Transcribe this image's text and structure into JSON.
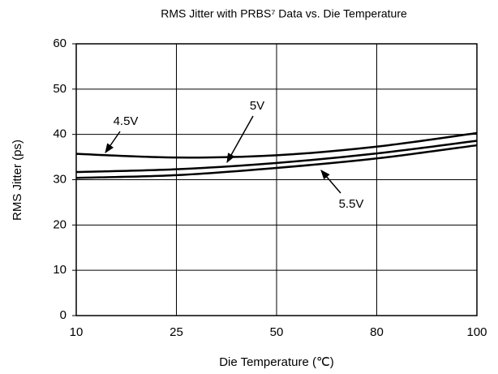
{
  "chart_data": {
    "type": "line",
    "title": "RMS Jitter with PRBS⁷ Data vs. Die Temperature",
    "x_label": "Die Temperature (℃)",
    "y_label": "RMS Jitter (ps)",
    "categories": [
      "10",
      "25",
      "50",
      "80",
      "100"
    ],
    "series": [
      {
        "name": "4.5V",
        "color": "#000000",
        "values": [
          35.7,
          34.9,
          35.4,
          37.3,
          40.3
        ]
      },
      {
        "name": "5V",
        "color": "#000000",
        "values": [
          31.7,
          32.3,
          33.7,
          35.8,
          38.6
        ]
      },
      {
        "name": "5.5V",
        "color": "#000000",
        "values": [
          30.4,
          31.0,
          32.6,
          34.7,
          37.6
        ]
      }
    ],
    "ylim": [
      0,
      60
    ],
    "yticks": [
      0,
      10,
      20,
      30,
      40,
      50,
      60
    ],
    "grid": true
  }
}
